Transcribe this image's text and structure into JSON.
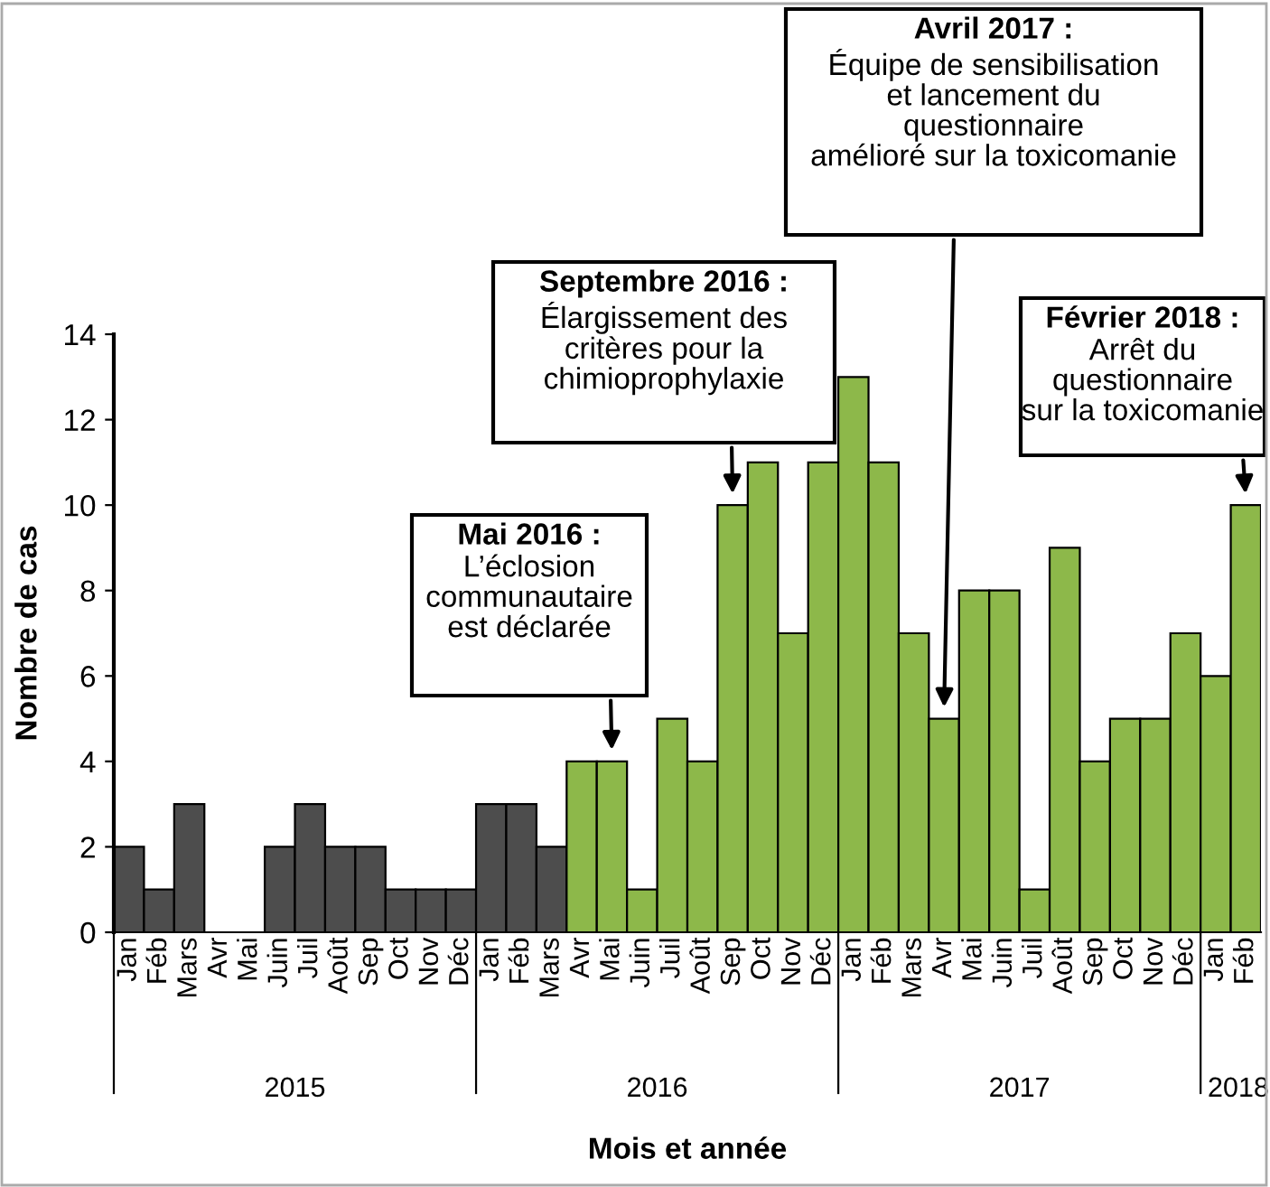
{
  "chart_data": {
    "type": "bar",
    "xlabel": "Mois et année",
    "ylabel": "Nombre de cas",
    "categories": [
      "Jan",
      "Féb",
      "Mars",
      "Avr",
      "Mai",
      "Juin",
      "Juil",
      "Août",
      "Sep",
      "Oct",
      "Nov",
      "Déc",
      "Jan",
      "Féb",
      "Mars",
      "Avr",
      "Mai",
      "Juin",
      "Juil",
      "Août",
      "Sep",
      "Oct",
      "Nov",
      "Déc",
      "Jan",
      "Féb",
      "Mars",
      "Avr",
      "Mai",
      "Juin",
      "Juil",
      "Août",
      "Sep",
      "Oct",
      "Nov",
      "Déc",
      "Jan",
      "Féb"
    ],
    "values": [
      2,
      1,
      3,
      0,
      0,
      2,
      3,
      2,
      2,
      1,
      1,
      1,
      3,
      3,
      2,
      4,
      4,
      1,
      5,
      4,
      10,
      11,
      7,
      11,
      13,
      11,
      7,
      5,
      8,
      8,
      1,
      9,
      4,
      5,
      5,
      7,
      6,
      10
    ],
    "colors": [
      "#4d4d4d",
      "#4d4d4d",
      "#4d4d4d",
      "#4d4d4d",
      "#4d4d4d",
      "#4d4d4d",
      "#4d4d4d",
      "#4d4d4d",
      "#4d4d4d",
      "#4d4d4d",
      "#4d4d4d",
      "#4d4d4d",
      "#4d4d4d",
      "#4d4d4d",
      "#4d4d4d",
      "#8db84a",
      "#8db84a",
      "#8db84a",
      "#8db84a",
      "#8db84a",
      "#8db84a",
      "#8db84a",
      "#8db84a",
      "#8db84a",
      "#8db84a",
      "#8db84a",
      "#8db84a",
      "#8db84a",
      "#8db84a",
      "#8db84a",
      "#8db84a",
      "#8db84a",
      "#8db84a",
      "#8db84a",
      "#8db84a",
      "#8db84a",
      "#8db84a",
      "#8db84a"
    ],
    "ylim": [
      0,
      14
    ],
    "yticks": [
      0,
      2,
      4,
      6,
      8,
      10,
      12,
      14
    ],
    "grid": false,
    "legend": false,
    "annotations": [
      "Mai 2016 :\nL’éclosion\ncommunautaire\nest déclarée",
      "Septembre 2016 :\nÉlargissement des\ncritères pour la\nchimioprophylaxie",
      "Avril 2017 :\nÉquipe de sensibilisation\net lancement du\nquestionnaire\namélioré sur la toxicomanie",
      "Février 2018 :\nArrêt du\nquestionnaire\nsur la toxicomanie",
      "2015",
      "2016",
      "2017",
      "2018"
    ]
  }
}
